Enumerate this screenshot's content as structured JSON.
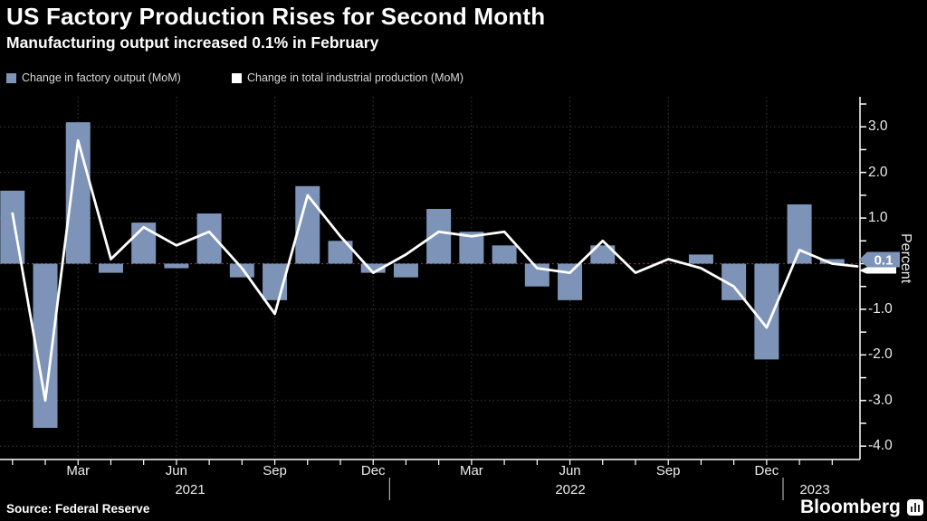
{
  "title": "US Factory Production Rises for Second Month",
  "subtitle": "Manufacturing output increased 0.1% in February",
  "legend": {
    "items": [
      {
        "label": "Change in factory output (MoM)",
        "color": "#7e93b8",
        "swatch": "blue-square"
      },
      {
        "label": "Change in total industrial production (MoM)",
        "color": "#ffffff",
        "swatch": "white-square"
      }
    ]
  },
  "y_axis": {
    "title": "Percent",
    "tick_labels": [
      "3.0",
      "2.0",
      "1.0",
      "-1.0",
      "-2.0",
      "-3.0",
      "-4.0"
    ],
    "bar_end_marker_label": "0.1"
  },
  "x_axis": {
    "month_tick_labels": [
      "Mar",
      "Jun",
      "Sep",
      "Dec",
      "Mar",
      "Jun",
      "Sep",
      "Dec"
    ],
    "year_labels": [
      "2021",
      "2022",
      "2023"
    ]
  },
  "footer": {
    "source": "Source: Federal Reserve",
    "brand": "Bloomberg"
  },
  "colors": {
    "background": "#000000",
    "bar": "#7e93b8",
    "line": "#ffffff",
    "grid": "#3d3d3d",
    "zero_line": "#7e3b31",
    "axis": "#ffffff",
    "text": "#ececec"
  },
  "chart_data": {
    "type": "bar+line",
    "title": "US Factory Production Rises for Second Month",
    "subtitle": "Manufacturing output increased 0.1% in February",
    "ylabel": "Percent",
    "ylim": [
      -4.3,
      3.7
    ],
    "yticks": [
      3,
      2,
      1,
      0,
      -1,
      -2,
      -3,
      -4
    ],
    "grid": "dotted",
    "legend_position": "top-left",
    "x": [
      "Jan 2021",
      "Feb 2021",
      "Mar 2021",
      "Apr 2021",
      "May 2021",
      "Jun 2021",
      "Jul 2021",
      "Aug 2021",
      "Sep 2021",
      "Oct 2021",
      "Nov 2021",
      "Dec 2021",
      "Jan 2022",
      "Feb 2022",
      "Mar 2022",
      "Apr 2022",
      "May 2022",
      "Jun 2022",
      "Jul 2022",
      "Aug 2022",
      "Sep 2022",
      "Oct 2022",
      "Nov 2022",
      "Dec 2022",
      "Jan 2023",
      "Feb 2023"
    ],
    "xtick_label_indices": [
      2,
      5,
      8,
      11,
      14,
      17,
      20,
      23
    ],
    "series": [
      {
        "name": "Change in factory output (MoM)",
        "type": "bar",
        "color": "#7e93b8",
        "values": [
          1.6,
          -3.6,
          3.1,
          -0.2,
          0.9,
          -0.1,
          1.1,
          -0.3,
          -0.8,
          1.7,
          0.5,
          -0.2,
          -0.3,
          1.2,
          0.7,
          0.4,
          -0.5,
          -0.8,
          0.4,
          0.0,
          0.0,
          0.2,
          -0.8,
          -2.1,
          1.3,
          0.1
        ]
      },
      {
        "name": "Change in total industrial production (MoM)",
        "type": "line",
        "color": "#ffffff",
        "values": [
          1.1,
          -3.0,
          2.7,
          0.1,
          0.8,
          0.4,
          0.7,
          -0.1,
          -1.1,
          1.5,
          0.6,
          -0.2,
          0.2,
          0.7,
          0.6,
          0.7,
          -0.1,
          -0.2,
          0.5,
          -0.2,
          0.1,
          -0.1,
          -0.5,
          -1.4,
          0.3,
          0.0
        ]
      }
    ],
    "end_markers": {
      "bar_label": "0.1",
      "line_value": 0.0
    }
  }
}
